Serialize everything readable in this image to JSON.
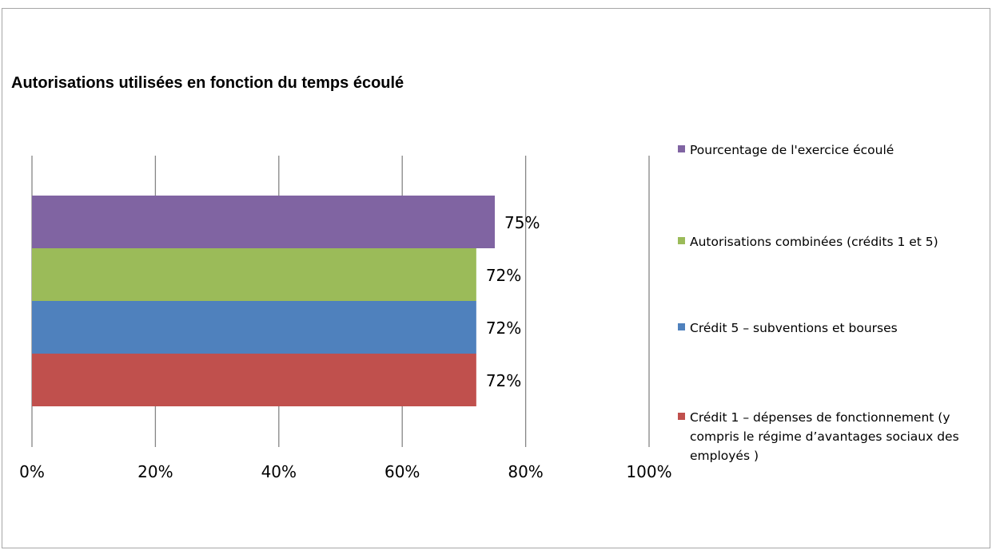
{
  "chart_data": {
    "type": "bar",
    "orientation": "horizontal",
    "title": "Autorisations utilisées en fonction du temps écoulé",
    "xlabel": "",
    "ylabel": "",
    "xlim": [
      0,
      100
    ],
    "x_ticks": [
      "0%",
      "20%",
      "40%",
      "60%",
      "80%",
      "100%"
    ],
    "grid": true,
    "legend_position": "right",
    "series": [
      {
        "name": "Pourcentage de l'exercice écoulé",
        "value": 75,
        "label": "75%",
        "color": "#8064a2"
      },
      {
        "name": "Autorisations combinées (crédits 1 et 5)",
        "value": 72,
        "label": "72%",
        "color": "#9bbb59"
      },
      {
        "name": "Crédit 5 – subventions  et bourses",
        "value": 72,
        "label": "72%",
        "color": "#4f81bd"
      },
      {
        "name": "Crédit 1 – dépenses  de fonctionnement  (y compris le régime d’avantages sociaux des employés )",
        "value": 72,
        "label": "72%",
        "color": "#c0504d"
      }
    ]
  }
}
